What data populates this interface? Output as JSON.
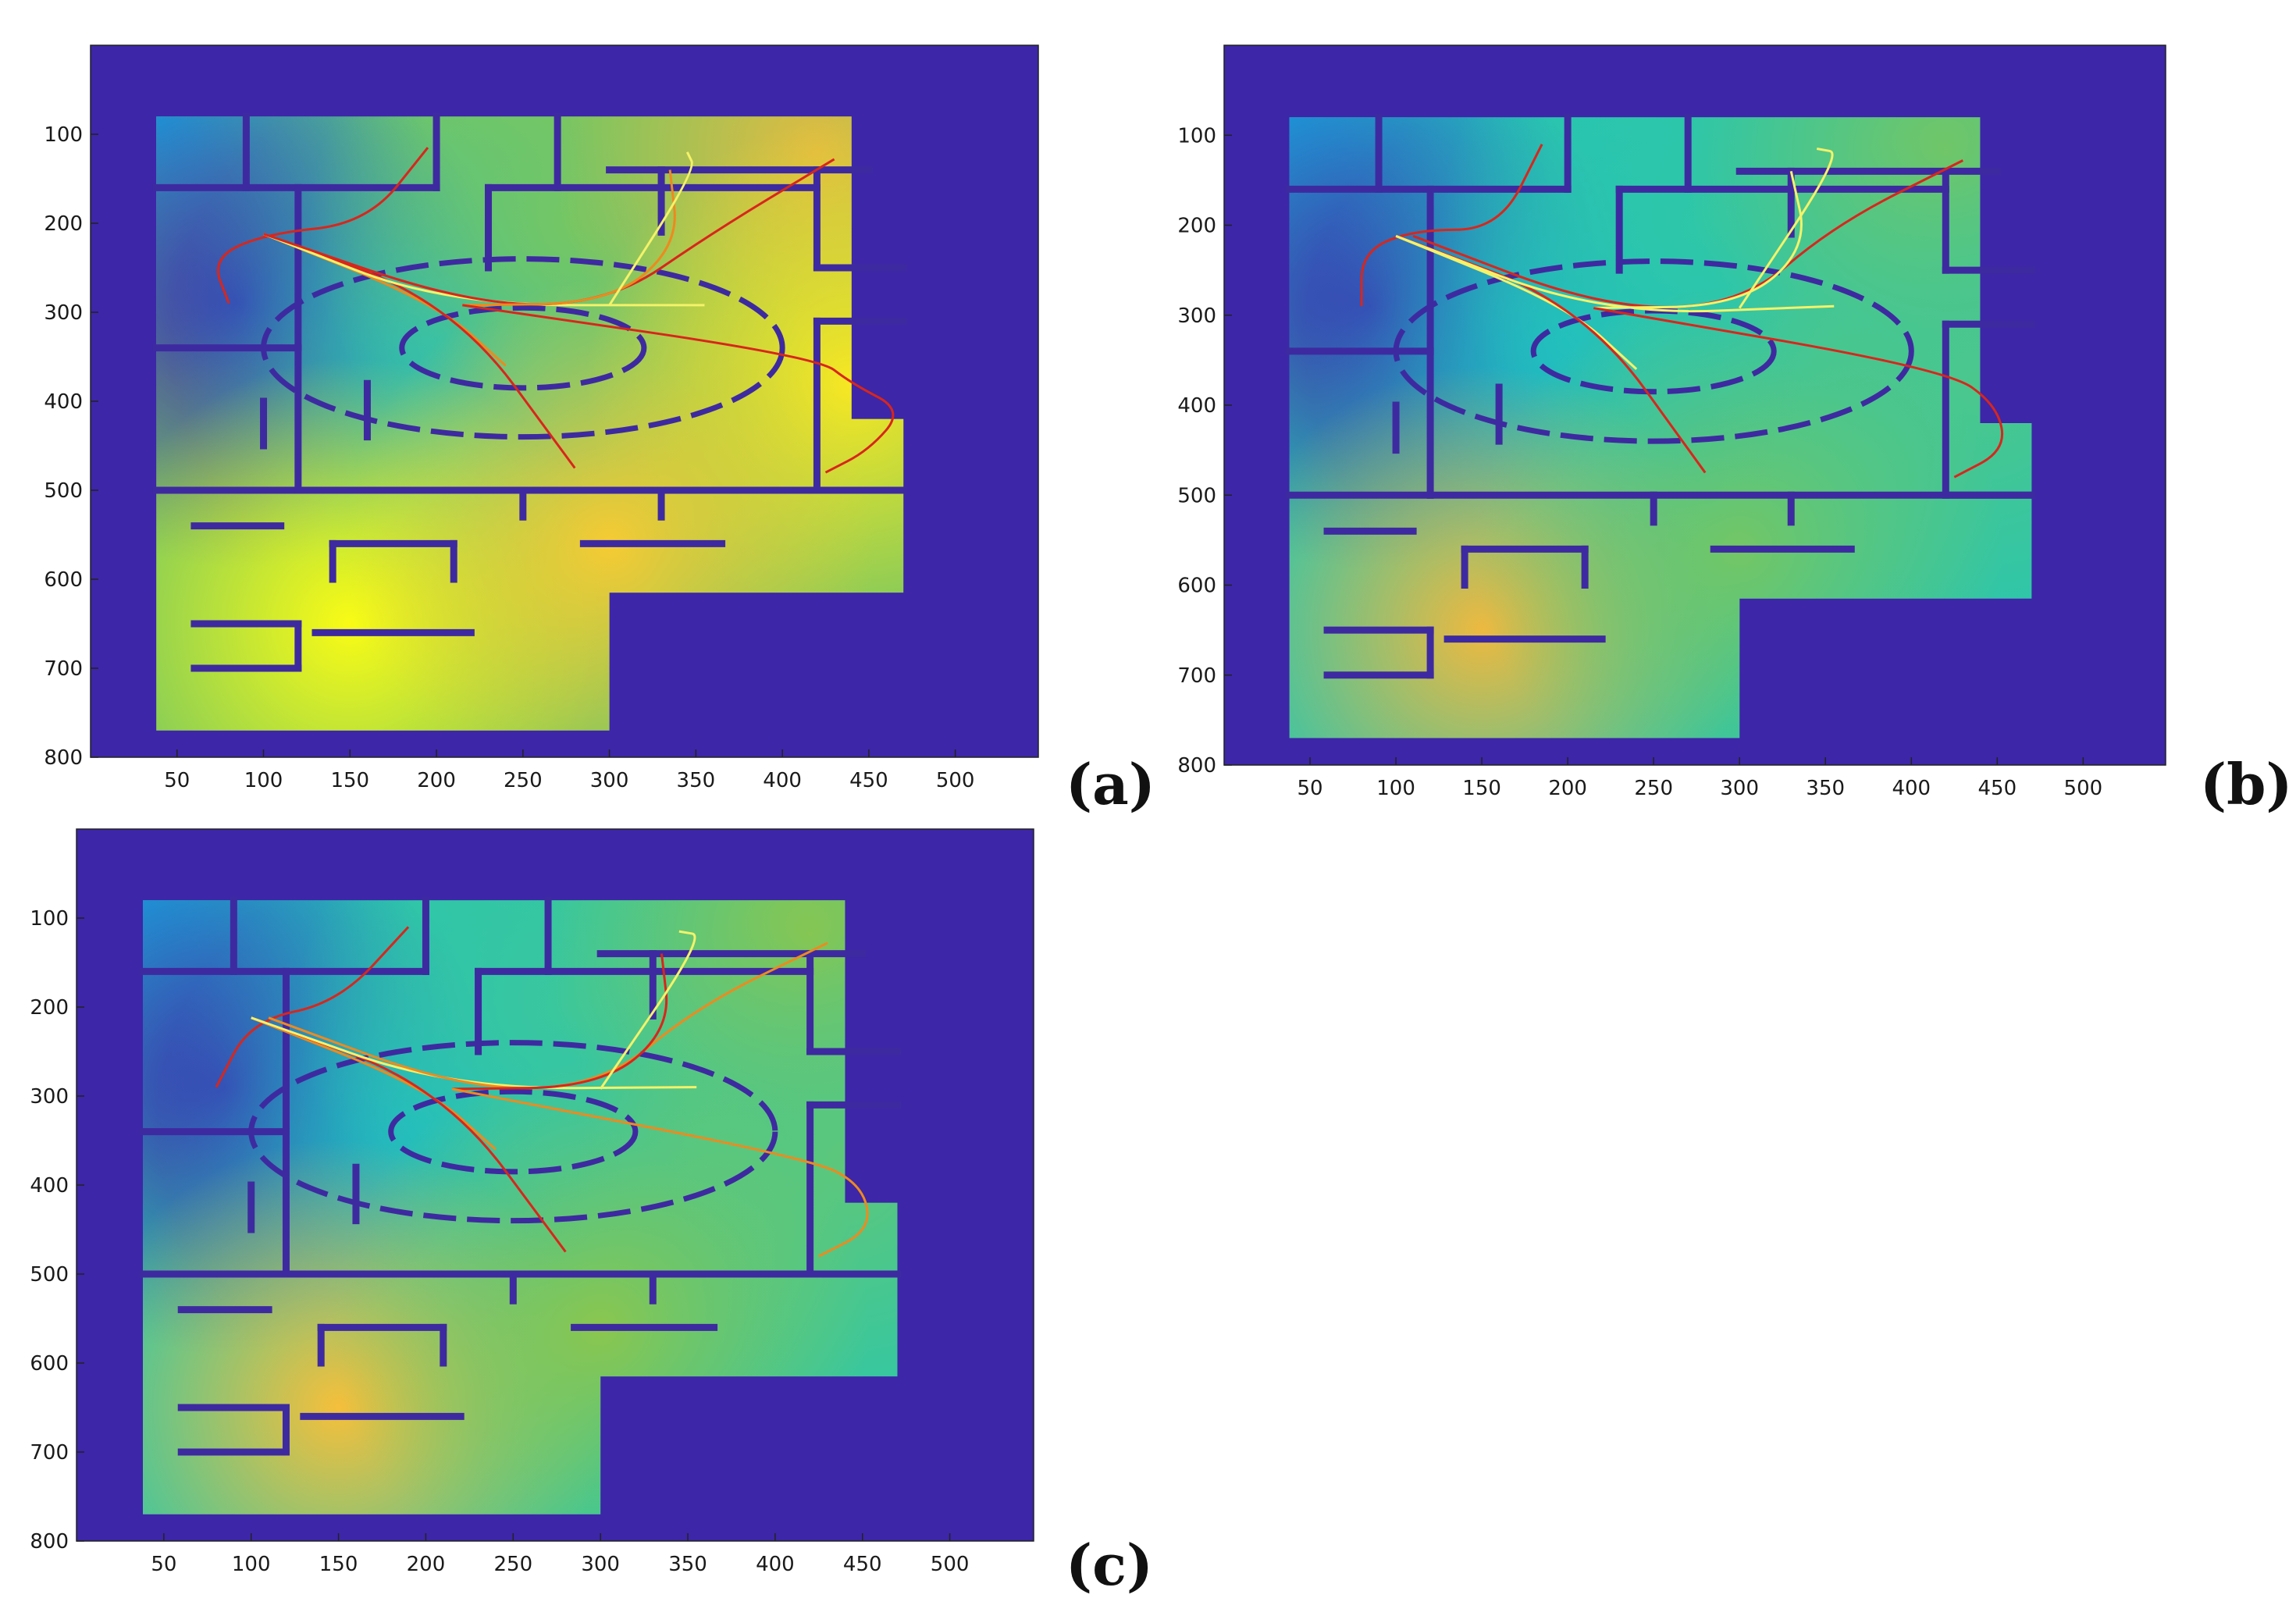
{
  "colors": {
    "background": "#3d26a8",
    "wall": "#3e2aa0",
    "colormap": [
      "#3e26a8",
      "#2d7ff0",
      "#11b6da",
      "#2ec7a8",
      "#8fc64a",
      "#f5b83f",
      "#f9fb15"
    ],
    "path_red": "#d8261c",
    "path_orange": "#ee8a1e",
    "path_yellow": "#f4f26a"
  },
  "chart_data": [
    {
      "type": "heatmap",
      "panel_label": "(a)",
      "xlim": [
        0,
        548
      ],
      "ylim": [
        0,
        800
      ],
      "y_reversed": true,
      "xticks": [
        50,
        100,
        150,
        200,
        250,
        300,
        350,
        400,
        450,
        500
      ],
      "yticks": [
        100,
        200,
        300,
        400,
        500,
        600,
        700,
        800
      ],
      "field": [
        {
          "x": 40,
          "y": 80,
          "v": 0.3
        },
        {
          "x": 85,
          "y": 290,
          "v": 0.02
        },
        {
          "x": 200,
          "y": 330,
          "v": 0.42
        },
        {
          "x": 280,
          "y": 200,
          "v": 0.62
        },
        {
          "x": 420,
          "y": 120,
          "v": 0.8
        },
        {
          "x": 440,
          "y": 380,
          "v": 0.95
        },
        {
          "x": 150,
          "y": 650,
          "v": 1.0
        },
        {
          "x": 300,
          "y": 560,
          "v": 0.88
        }
      ],
      "paths": [
        {
          "color": "red",
          "points": [
            [
              80,
              290
            ],
            [
              70,
              240
            ],
            [
              100,
              212
            ],
            [
              160,
              200
            ],
            [
              195,
              115
            ]
          ]
        },
        {
          "color": "orange",
          "points": [
            [
              100,
              212
            ],
            [
              200,
              290
            ],
            [
              240,
              360
            ]
          ]
        },
        {
          "color": "red",
          "points": [
            [
              100,
              212
            ],
            [
              210,
              290
            ],
            [
              280,
              475
            ]
          ]
        },
        {
          "color": "yellow",
          "points": [
            [
              100,
              212
            ],
            [
              205,
              292
            ],
            [
              355,
              292
            ]
          ]
        },
        {
          "color": "red",
          "points": [
            [
              100,
              212
            ],
            [
              220,
              292
            ],
            [
              300,
              290
            ],
            [
              360,
              210
            ],
            [
              430,
              128
            ]
          ]
        },
        {
          "color": "orange",
          "points": [
            [
              215,
              292
            ],
            [
              300,
              290
            ],
            [
              340,
              225
            ],
            [
              335,
              140
            ]
          ]
        },
        {
          "color": "red",
          "points": [
            [
              215,
              292
            ],
            [
              420,
              350
            ],
            [
              440,
              380
            ],
            [
              470,
              410
            ],
            [
              450,
              455
            ],
            [
              425,
              480
            ]
          ]
        },
        {
          "color": "yellow",
          "points": [
            [
              300,
              292
            ],
            [
              350,
              140
            ],
            [
              345,
              120
            ]
          ]
        }
      ]
    },
    {
      "type": "heatmap",
      "panel_label": "(b)",
      "xlim": [
        0,
        548
      ],
      "ylim": [
        0,
        800
      ],
      "y_reversed": true,
      "xticks": [
        50,
        100,
        150,
        200,
        250,
        300,
        350,
        400,
        450,
        500
      ],
      "yticks": [
        100,
        200,
        300,
        400,
        500,
        600,
        700,
        800
      ],
      "field": [
        {
          "x": 40,
          "y": 80,
          "v": 0.3
        },
        {
          "x": 85,
          "y": 290,
          "v": 0.02
        },
        {
          "x": 200,
          "y": 330,
          "v": 0.4
        },
        {
          "x": 280,
          "y": 200,
          "v": 0.5
        },
        {
          "x": 420,
          "y": 120,
          "v": 0.62
        },
        {
          "x": 440,
          "y": 380,
          "v": 0.55
        },
        {
          "x": 150,
          "y": 650,
          "v": 0.82
        },
        {
          "x": 300,
          "y": 560,
          "v": 0.62
        }
      ],
      "paths": [
        {
          "color": "red",
          "points": [
            [
              80,
              290
            ],
            [
              80,
              230
            ],
            [
              110,
              205
            ],
            [
              160,
              205
            ],
            [
              185,
              110
            ]
          ]
        },
        {
          "color": "yellow",
          "points": [
            [
              100,
              212
            ],
            [
              200,
              290
            ],
            [
              240,
              360
            ]
          ]
        },
        {
          "color": "red",
          "points": [
            [
              100,
              212
            ],
            [
              210,
              290
            ],
            [
              280,
              475
            ]
          ]
        },
        {
          "color": "yellow",
          "points": [
            [
              100,
              212
            ],
            [
              220,
              300
            ],
            [
              355,
              290
            ]
          ]
        },
        {
          "color": "red",
          "points": [
            [
              110,
              212
            ],
            [
              220,
              292
            ],
            [
              300,
              290
            ],
            [
              355,
              200
            ],
            [
              430,
              128
            ]
          ]
        },
        {
          "color": "yellow",
          "points": [
            [
              215,
              292
            ],
            [
              300,
              290
            ],
            [
              340,
              225
            ],
            [
              330,
              140
            ]
          ]
        },
        {
          "color": "red",
          "points": [
            [
              215,
              292
            ],
            [
              420,
              360
            ],
            [
              450,
              400
            ],
            [
              455,
              450
            ],
            [
              425,
              480
            ]
          ]
        },
        {
          "color": "yellow",
          "points": [
            [
              300,
              292
            ],
            [
              360,
              120
            ],
            [
              345,
              115
            ]
          ]
        }
      ]
    },
    {
      "type": "heatmap",
      "panel_label": "(c)",
      "xlim": [
        0,
        548
      ],
      "ylim": [
        0,
        800
      ],
      "y_reversed": true,
      "xticks": [
        50,
        100,
        150,
        200,
        250,
        300,
        350,
        400,
        450,
        500
      ],
      "yticks": [
        100,
        200,
        300,
        400,
        500,
        600,
        700,
        800
      ],
      "field": [
        {
          "x": 40,
          "y": 80,
          "v": 0.3
        },
        {
          "x": 85,
          "y": 290,
          "v": 0.02
        },
        {
          "x": 200,
          "y": 330,
          "v": 0.4
        },
        {
          "x": 280,
          "y": 200,
          "v": 0.52
        },
        {
          "x": 420,
          "y": 120,
          "v": 0.66
        },
        {
          "x": 440,
          "y": 380,
          "v": 0.58
        },
        {
          "x": 150,
          "y": 650,
          "v": 0.85
        },
        {
          "x": 300,
          "y": 560,
          "v": 0.66
        }
      ],
      "paths": [
        {
          "color": "red",
          "points": [
            [
              80,
              290
            ],
            [
              100,
              215
            ],
            [
              150,
              195
            ],
            [
              190,
              110
            ]
          ]
        },
        {
          "color": "orange",
          "points": [
            [
              100,
              212
            ],
            [
              200,
              290
            ],
            [
              240,
              360
            ]
          ]
        },
        {
          "color": "red",
          "points": [
            [
              100,
              212
            ],
            [
              210,
              290
            ],
            [
              280,
              475
            ]
          ]
        },
        {
          "color": "yellow",
          "points": [
            [
              100,
              212
            ],
            [
              215,
              292
            ],
            [
              355,
              290
            ]
          ]
        },
        {
          "color": "orange",
          "points": [
            [
              110,
              212
            ],
            [
              220,
              292
            ],
            [
              300,
              290
            ],
            [
              355,
              200
            ],
            [
              430,
              128
            ]
          ]
        },
        {
          "color": "red",
          "points": [
            [
              215,
              292
            ],
            [
              300,
              290
            ],
            [
              340,
              225
            ],
            [
              335,
              140
            ]
          ]
        },
        {
          "color": "orange",
          "points": [
            [
              215,
              292
            ],
            [
              420,
              370
            ],
            [
              450,
              400
            ],
            [
              455,
              450
            ],
            [
              425,
              480
            ]
          ]
        },
        {
          "color": "yellow",
          "points": [
            [
              300,
              292
            ],
            [
              360,
              120
            ],
            [
              345,
              115
            ]
          ]
        }
      ]
    }
  ]
}
